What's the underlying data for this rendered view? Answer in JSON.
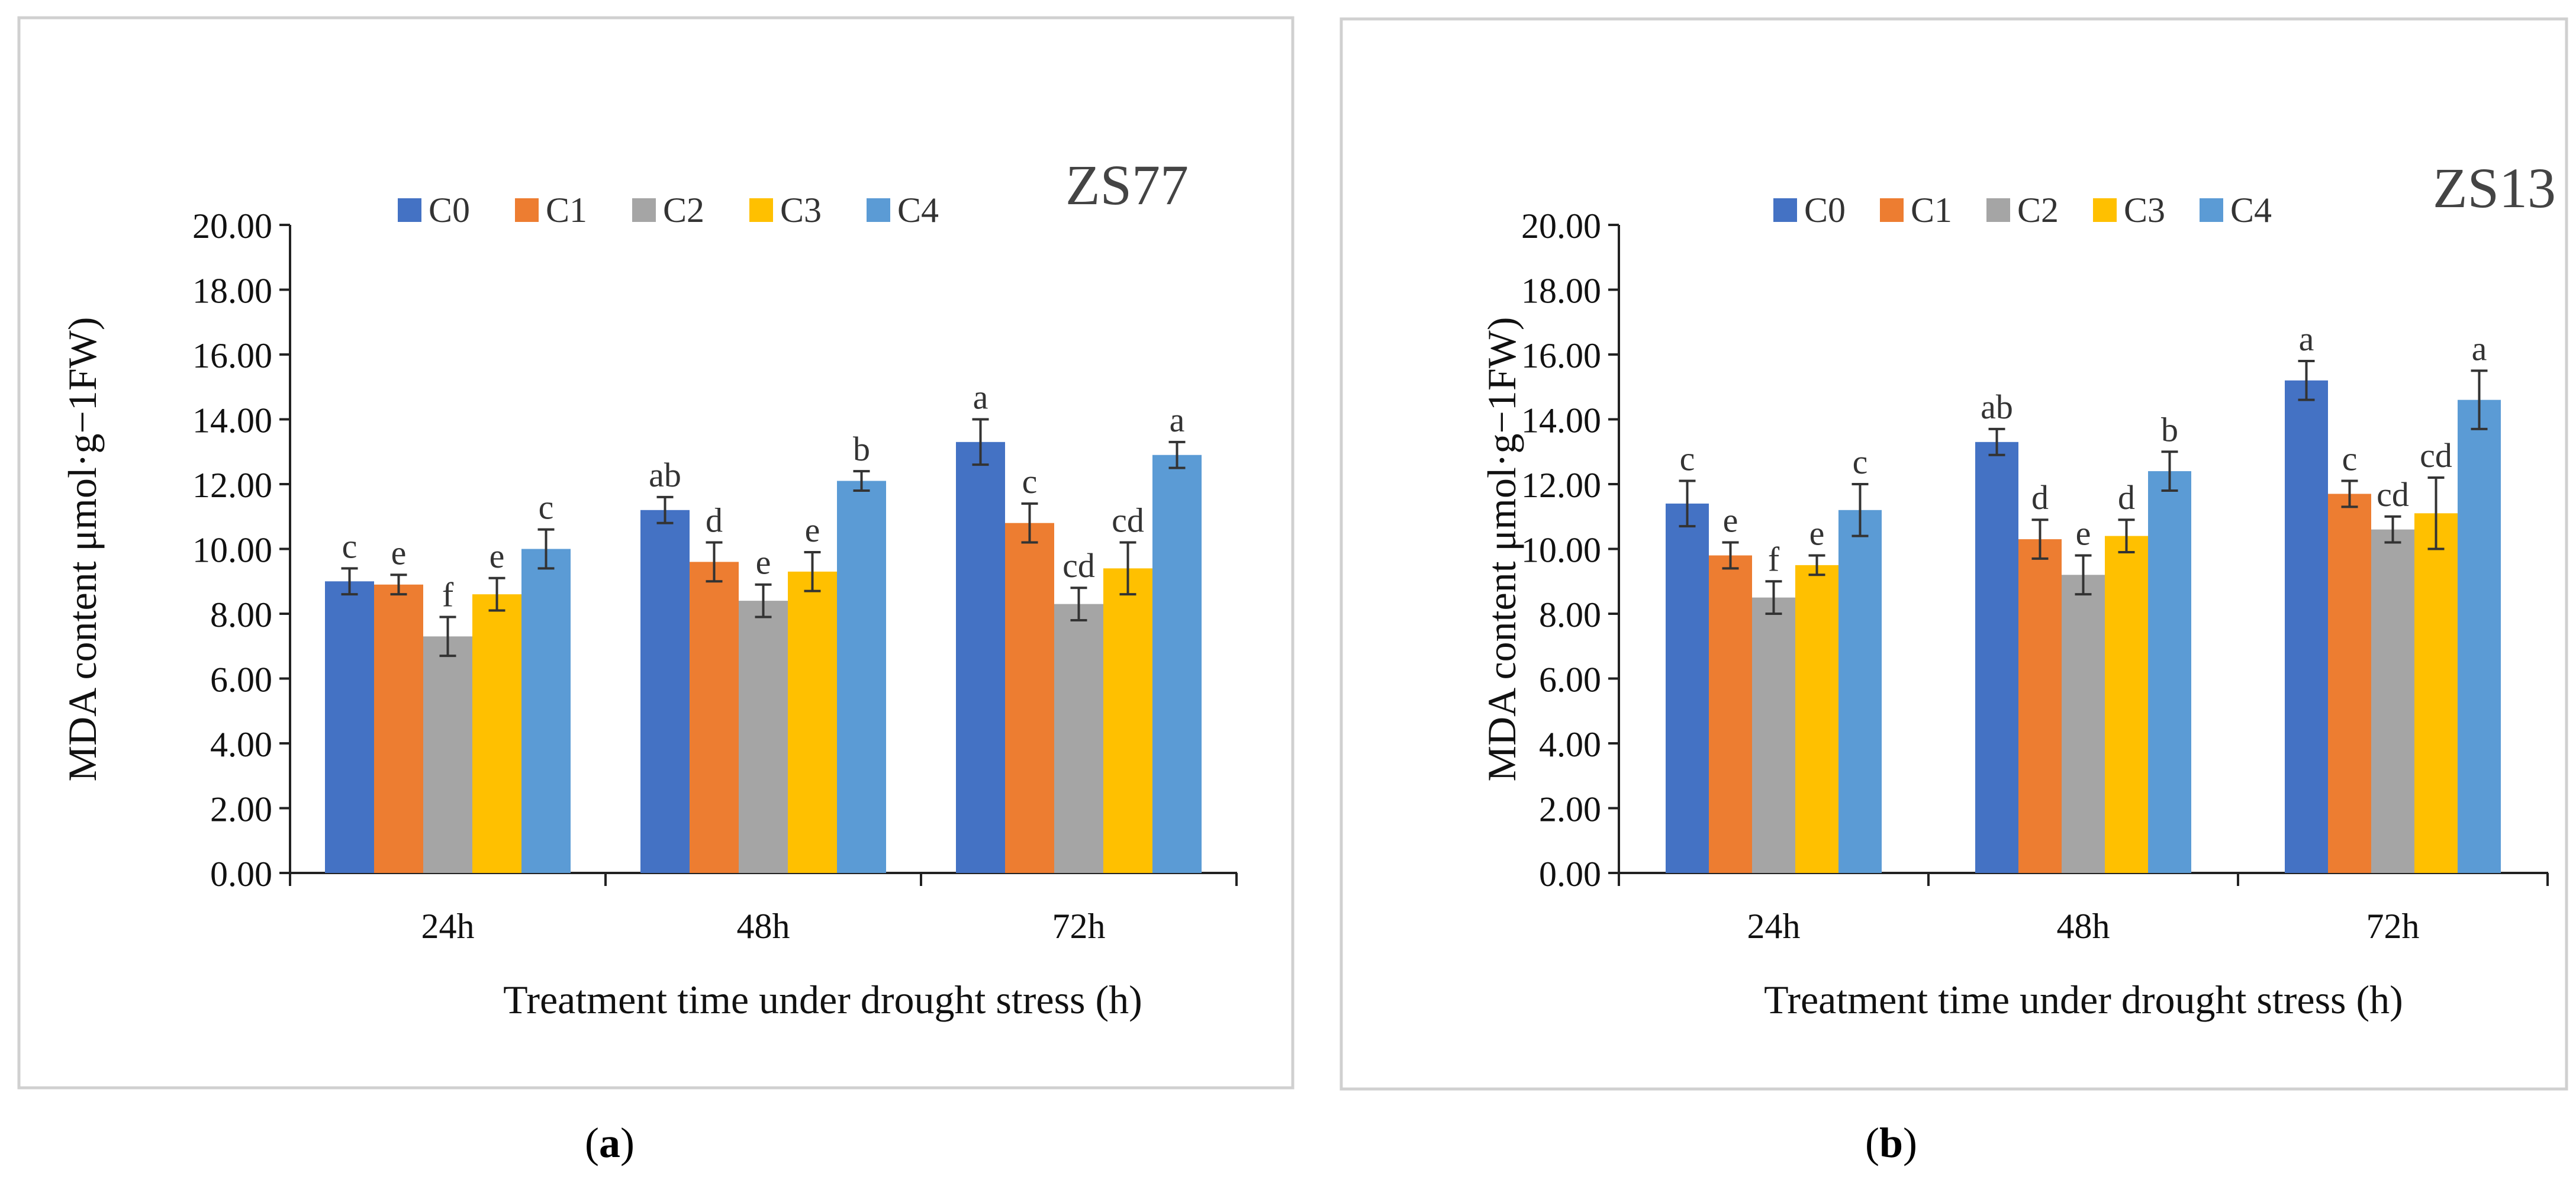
{
  "figure": {
    "panel_labels": [
      "a",
      "b"
    ]
  },
  "legend_colors": {
    "C0": "#4472C4",
    "C1": "#ED7D31",
    "C2": "#A5A5A5",
    "C3": "#FFC000",
    "C4": "#5B9BD5"
  },
  "chart_data": [
    {
      "type": "bar",
      "title": "ZS77",
      "xlabel": "Treatment time under drought stress (h)",
      "ylabel": "MDA content μmol·g−1FW)",
      "ylim": [
        0,
        20
      ],
      "yticks": [
        "0.00",
        "2.00",
        "4.00",
        "6.00",
        "8.00",
        "10.00",
        "12.00",
        "14.00",
        "16.00",
        "18.00",
        "20.00"
      ],
      "categories": [
        "24h",
        "48h",
        "72h"
      ],
      "series": [
        {
          "name": "C0",
          "values": [
            9.0,
            11.2,
            13.3
          ],
          "errors": [
            0.4,
            0.4,
            0.7
          ],
          "letters": [
            "c",
            "ab",
            "a"
          ]
        },
        {
          "name": "C1",
          "values": [
            8.9,
            9.6,
            10.8
          ],
          "errors": [
            0.3,
            0.6,
            0.6
          ],
          "letters": [
            "e",
            "d",
            "c"
          ]
        },
        {
          "name": "C2",
          "values": [
            7.3,
            8.4,
            8.3
          ],
          "errors": [
            0.6,
            0.5,
            0.5
          ],
          "letters": [
            "f",
            "e",
            "cd"
          ]
        },
        {
          "name": "C3",
          "values": [
            8.6,
            9.3,
            9.4
          ],
          "errors": [
            0.5,
            0.6,
            0.8
          ],
          "letters": [
            "e",
            "e",
            "cd"
          ]
        },
        {
          "name": "C4",
          "values": [
            10.0,
            12.1,
            12.9
          ],
          "errors": [
            0.6,
            0.3,
            0.4
          ],
          "letters": [
            "c",
            "b",
            "a"
          ]
        }
      ]
    },
    {
      "type": "bar",
      "title": "ZS13",
      "xlabel": "Treatment time under drought stress (h)",
      "ylabel": "MDA content μmol·g−1FW)",
      "ylim": [
        0,
        20
      ],
      "yticks": [
        "0.00",
        "2.00",
        "4.00",
        "6.00",
        "8.00",
        "10.00",
        "12.00",
        "14.00",
        "16.00",
        "18.00",
        "20.00"
      ],
      "categories": [
        "24h",
        "48h",
        "72h"
      ],
      "series": [
        {
          "name": "C0",
          "values": [
            11.4,
            13.3,
            15.2
          ],
          "errors": [
            0.7,
            0.4,
            0.6
          ],
          "letters": [
            "c",
            "ab",
            "a"
          ]
        },
        {
          "name": "C1",
          "values": [
            9.8,
            10.3,
            11.7
          ],
          "errors": [
            0.4,
            0.6,
            0.4
          ],
          "letters": [
            "e",
            "d",
            "c"
          ]
        },
        {
          "name": "C2",
          "values": [
            8.5,
            9.2,
            10.6
          ],
          "errors": [
            0.5,
            0.6,
            0.4
          ],
          "letters": [
            "f",
            "e",
            "cd"
          ]
        },
        {
          "name": "C3",
          "values": [
            9.5,
            10.4,
            11.1
          ],
          "errors": [
            0.3,
            0.5,
            1.1
          ],
          "letters": [
            "e",
            "d",
            "cd"
          ]
        },
        {
          "name": "C4",
          "values": [
            11.2,
            12.4,
            14.6
          ],
          "errors": [
            0.8,
            0.6,
            0.9
          ],
          "letters": [
            "c",
            "b",
            "a"
          ]
        }
      ]
    }
  ]
}
